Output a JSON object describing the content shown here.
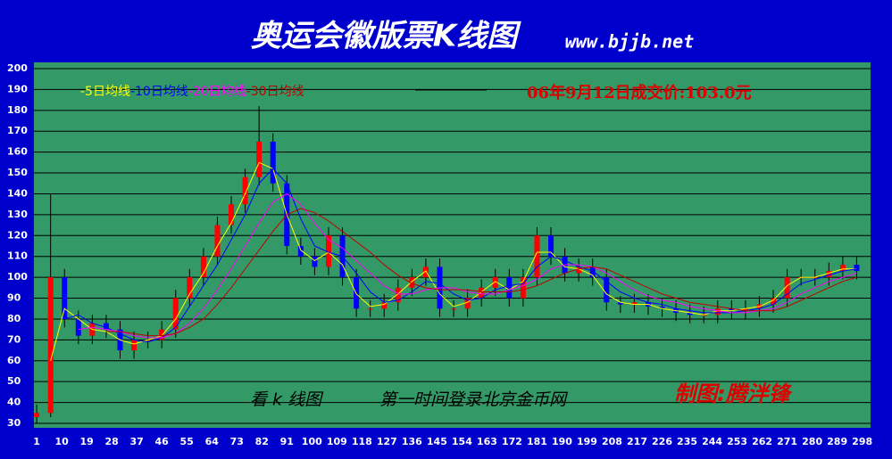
{
  "chart_data": {
    "type": "candlestick",
    "title": "奥运会徽版票K线图",
    "subtitle": "www.bjjb.net",
    "annotation": "06年9月12日成交价:103.0元",
    "footer_left": "看 k 线图",
    "footer_center": "第一时间登录北京金币网",
    "signature": "制图:腾泮锋",
    "background_color": "#0000cc",
    "plot_color": "#339966",
    "grid": true,
    "up_color": "#ff0000",
    "down_color": "#0000ff",
    "xlim": [
      0,
      301
    ],
    "ylim": [
      30,
      200
    ],
    "xticks": [
      1,
      10,
      19,
      28,
      37,
      46,
      55,
      64,
      73,
      82,
      91,
      100,
      109,
      118,
      127,
      136,
      145,
      154,
      163,
      172,
      181,
      190,
      199,
      208,
      217,
      226,
      235,
      244,
      253,
      262,
      271,
      280,
      289,
      298
    ],
    "yticks": [
      30,
      40,
      50,
      60,
      70,
      80,
      90,
      100,
      110,
      120,
      130,
      140,
      150,
      160,
      170,
      180,
      190,
      200
    ],
    "x": [
      1,
      6,
      11,
      16,
      21,
      26,
      31,
      36,
      41,
      46,
      51,
      56,
      61,
      66,
      71,
      76,
      81,
      86,
      91,
      96,
      101,
      106,
      111,
      116,
      121,
      126,
      131,
      136,
      141,
      146,
      151,
      156,
      161,
      166,
      171,
      176,
      181,
      186,
      191,
      196,
      201,
      206,
      211,
      216,
      221,
      226,
      231,
      236,
      241,
      246,
      251,
      256,
      261,
      266,
      271,
      276,
      281,
      286,
      291,
      296
    ],
    "open": [
      33,
      35,
      100,
      80,
      72,
      78,
      75,
      65,
      70,
      70,
      75,
      90,
      100,
      110,
      125,
      135,
      148,
      165,
      145,
      115,
      110,
      105,
      120,
      100,
      85,
      85,
      88,
      95,
      100,
      105,
      85,
      85,
      90,
      95,
      100,
      90,
      100,
      120,
      110,
      102,
      105,
      100,
      88,
      87,
      88,
      86,
      85,
      83,
      82,
      82,
      85,
      84,
      85,
      87,
      90,
      100,
      100,
      100,
      103,
      106
    ],
    "high": [
      39,
      140,
      104,
      84,
      82,
      82,
      79,
      74,
      74,
      79,
      94,
      104,
      114,
      129,
      139,
      152,
      182,
      169,
      149,
      119,
      114,
      124,
      124,
      104,
      89,
      92,
      99,
      104,
      109,
      109,
      89,
      94,
      99,
      104,
      104,
      104,
      124,
      124,
      114,
      109,
      109,
      104,
      91,
      92,
      92,
      90,
      89,
      87,
      86,
      89,
      89,
      89,
      91,
      94,
      104,
      104,
      104,
      107,
      110,
      110
    ],
    "low": [
      30,
      33,
      76,
      68,
      68,
      71,
      61,
      61,
      66,
      66,
      71,
      86,
      96,
      106,
      121,
      131,
      144,
      141,
      111,
      106,
      101,
      101,
      96,
      81,
      81,
      81,
      84,
      91,
      96,
      81,
      81,
      81,
      86,
      91,
      86,
      86,
      96,
      106,
      98,
      98,
      96,
      84,
      83,
      83,
      82,
      81,
      79,
      78,
      78,
      78,
      80,
      80,
      81,
      83,
      86,
      96,
      96,
      96,
      99,
      99
    ],
    "close": [
      35,
      100,
      80,
      72,
      78,
      75,
      65,
      70,
      70,
      75,
      90,
      100,
      110,
      125,
      135,
      148,
      165,
      145,
      115,
      110,
      105,
      120,
      100,
      85,
      85,
      88,
      95,
      100,
      105,
      85,
      85,
      90,
      95,
      100,
      90,
      100,
      120,
      110,
      102,
      105,
      100,
      88,
      87,
      88,
      86,
      85,
      83,
      82,
      82,
      85,
      84,
      85,
      87,
      90,
      100,
      100,
      100,
      103,
      106,
      103
    ],
    "series": [
      {
        "name": "-5日均线",
        "color": "#ffff00",
        "values": [
          null,
          60,
          85,
          80,
          75,
          74,
          70,
          68,
          70,
          72,
          80,
          92,
          102,
          115,
          126,
          140,
          155,
          152,
          130,
          113,
          108,
          112,
          106,
          92,
          86,
          87,
          92,
          98,
          103,
          92,
          86,
          88,
          93,
          98,
          94,
          98,
          112,
          112,
          105,
          104,
          101,
          92,
          88,
          87,
          87,
          85,
          84,
          83,
          82,
          84,
          84,
          85,
          86,
          89,
          96,
          100,
          100,
          102,
          104,
          104
        ]
      },
      {
        "name": "-10日均线",
        "color": "#0000ff",
        "values": [
          null,
          null,
          80,
          82,
          78,
          76,
          73,
          70,
          69,
          71,
          76,
          86,
          96,
          106,
          118,
          130,
          145,
          152,
          145,
          128,
          115,
          112,
          110,
          102,
          93,
          88,
          89,
          93,
          98,
          97,
          92,
          89,
          90,
          94,
          96,
          97,
          105,
          110,
          108,
          105,
          103,
          98,
          93,
          90,
          88,
          87,
          85,
          84,
          83,
          83,
          83,
          84,
          85,
          87,
          92,
          97,
          99,
          101,
          103,
          104
        ]
      },
      {
        "name": "-20日均线",
        "color": "#ff00ff",
        "values": [
          null,
          null,
          null,
          75,
          76,
          75,
          74,
          72,
          71,
          71,
          73,
          78,
          85,
          94,
          104,
          115,
          126,
          136,
          140,
          135,
          126,
          118,
          114,
          108,
          102,
          96,
          92,
          92,
          94,
          95,
          95,
          93,
          92,
          92,
          94,
          96,
          99,
          104,
          106,
          106,
          105,
          102,
          98,
          94,
          91,
          89,
          88,
          86,
          85,
          84,
          83,
          83,
          84,
          85,
          88,
          92,
          95,
          98,
          100,
          102
        ]
      },
      {
        "name": "-30日均线",
        "color": "#c00000",
        "values": [
          null,
          null,
          null,
          null,
          null,
          74,
          74,
          73,
          72,
          72,
          73,
          76,
          80,
          87,
          95,
          104,
          113,
          122,
          130,
          133,
          131,
          127,
          122,
          117,
          112,
          106,
          101,
          97,
          95,
          94,
          94,
          94,
          93,
          93,
          93,
          94,
          96,
          99,
          102,
          104,
          105,
          104,
          101,
          98,
          95,
          92,
          90,
          88,
          87,
          86,
          85,
          84,
          84,
          84,
          86,
          89,
          92,
          95,
          98,
          100
        ]
      }
    ]
  }
}
